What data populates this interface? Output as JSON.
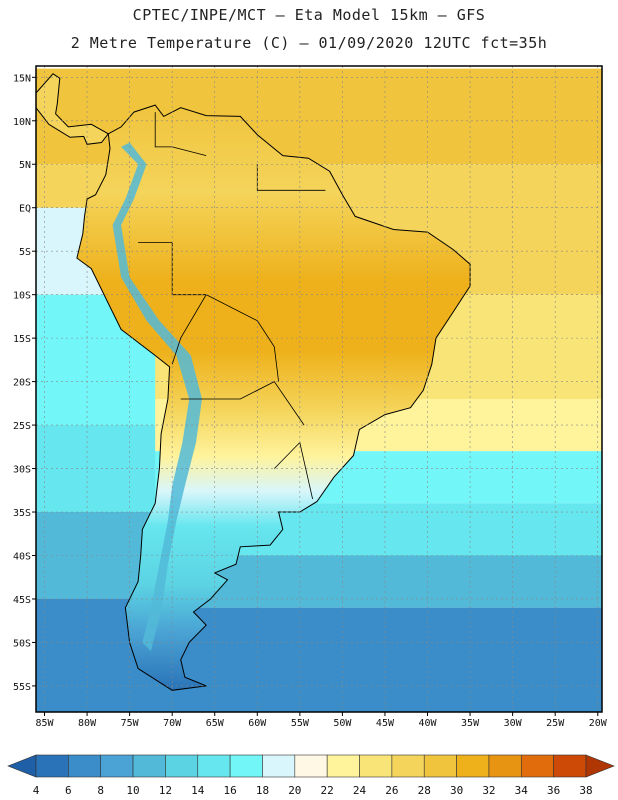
{
  "header": {
    "title_line1": "CPTEC/INPE/MCT –  Eta Model 15km – GFS",
    "title_line2": "2 Metre Temperature (C) – 01/09/2020 12UTC fct=35h"
  },
  "map": {
    "lat_labels": [
      "15N",
      "10N",
      "5N",
      "EQ",
      "5S",
      "10S",
      "15S",
      "20S",
      "25S",
      "30S",
      "35S",
      "40S",
      "45S",
      "50S",
      "55S"
    ],
    "lon_labels": [
      "85W",
      "80W",
      "75W",
      "70W",
      "65W",
      "60W",
      "55W",
      "50W",
      "45W",
      "40W",
      "35W",
      "30W",
      "25W",
      "20W"
    ],
    "ocean_bands": [
      {
        "from_lat": 16,
        "to_lat": 5,
        "temp": 28
      },
      {
        "from_lat": 5,
        "to_lat": -10,
        "temp": 26
      },
      {
        "from_lat": -10,
        "to_lat": -22,
        "temp": 24
      },
      {
        "from_lat": -22,
        "to_lat": -28,
        "temp": 22
      },
      {
        "from_lat": -28,
        "to_lat": -34,
        "temp": 16
      },
      {
        "from_lat": -34,
        "to_lat": -40,
        "temp": 14
      },
      {
        "from_lat": -40,
        "to_lat": -46,
        "temp": 10
      },
      {
        "from_lat": -46,
        "to_lat": -58,
        "temp": 6
      }
    ],
    "pacific_bands": [
      {
        "from_lat": 0,
        "to_lat": -10,
        "temp": 18
      },
      {
        "from_lat": -10,
        "to_lat": -25,
        "temp": 16
      },
      {
        "from_lat": -25,
        "to_lat": -35,
        "temp": 14
      },
      {
        "from_lat": -35,
        "to_lat": -45,
        "temp": 10
      },
      {
        "from_lat": -45,
        "to_lat": -58,
        "temp": 6
      }
    ]
  },
  "colorbar": {
    "labels": [
      "4",
      "6",
      "8",
      "10",
      "12",
      "14",
      "16",
      "18",
      "20",
      "22",
      "24",
      "26",
      "28",
      "30",
      "32",
      "34",
      "36",
      "38"
    ],
    "colors": [
      "#1f5fa8",
      "#2a73b8",
      "#3a8dc8",
      "#4aa3d4",
      "#52bad8",
      "#5cd3e3",
      "#66e6ee",
      "#72f6f8",
      "#d8f6fb",
      "#fff8e4",
      "#fff39c",
      "#f9e577",
      "#f4d45a",
      "#f0c43d",
      "#eeb11b",
      "#e89413",
      "#e06c0b",
      "#cc4a06",
      "#b03604"
    ]
  },
  "colors": {
    "border": "#000000",
    "grid": "#888888"
  }
}
